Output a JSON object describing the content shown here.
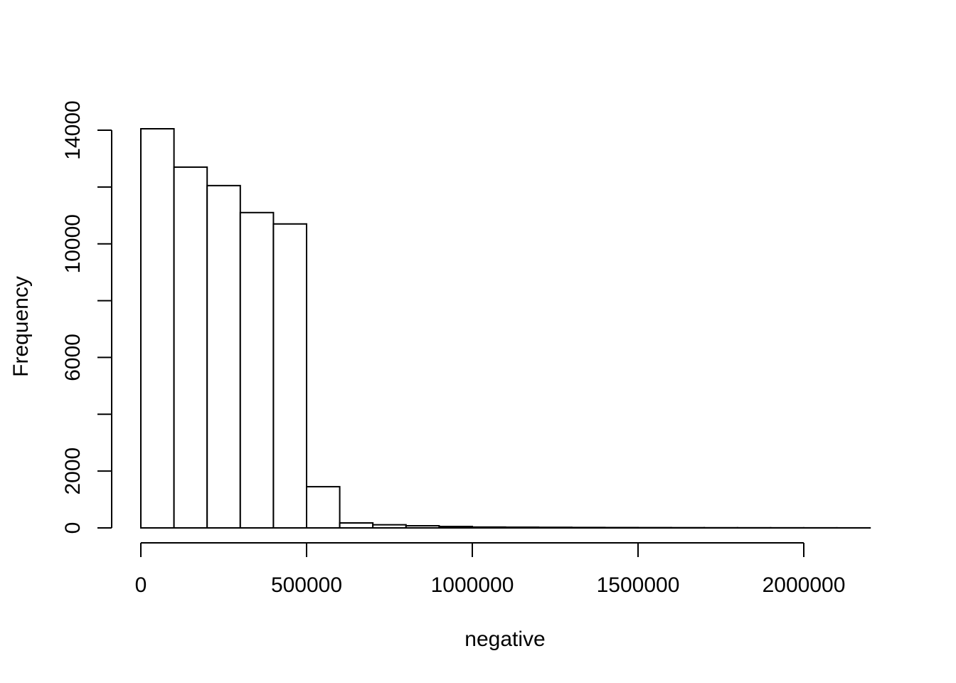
{
  "figure": {
    "background_color": "#ffffff",
    "axis_color": "#000000",
    "bar_fill_color": "#ffffff",
    "bar_stroke_color": "#000000"
  },
  "chart_data": {
    "type": "bar",
    "subtype": "histogram",
    "title": "",
    "xlabel": "negative",
    "ylabel": "Frequency",
    "xlim": [
      0,
      2200000
    ],
    "ylim": [
      0,
      14000
    ],
    "grid": "off",
    "legend": "none",
    "bin_start": 0,
    "bin_width": 100000,
    "bin_edges": [
      0,
      100000,
      200000,
      300000,
      400000,
      500000,
      600000,
      700000,
      800000,
      900000,
      1000000,
      1100000,
      1200000,
      1300000,
      1400000,
      1500000,
      1600000,
      1700000,
      1800000,
      1900000,
      2000000,
      2100000,
      2200000
    ],
    "counts": [
      14050,
      12700,
      12050,
      11100,
      10700,
      1450,
      175,
      110,
      75,
      50,
      30,
      25,
      20,
      15,
      12,
      10,
      8,
      6,
      5,
      4,
      3,
      2
    ],
    "x_ticks": [
      {
        "value": 0,
        "label": "0"
      },
      {
        "value": 500000,
        "label": "500000"
      },
      {
        "value": 1000000,
        "label": "1000000"
      },
      {
        "value": 1500000,
        "label": "1500000"
      },
      {
        "value": 2000000,
        "label": "2000000"
      }
    ],
    "y_ticks": [
      {
        "value": 0,
        "label": "0"
      },
      {
        "value": 2000,
        "label": "2000"
      },
      {
        "value": 4000,
        "label": ""
      },
      {
        "value": 6000,
        "label": "6000"
      },
      {
        "value": 8000,
        "label": ""
      },
      {
        "value": 10000,
        "label": "10000"
      },
      {
        "value": 12000,
        "label": ""
      },
      {
        "value": 14000,
        "label": "14000"
      }
    ]
  }
}
